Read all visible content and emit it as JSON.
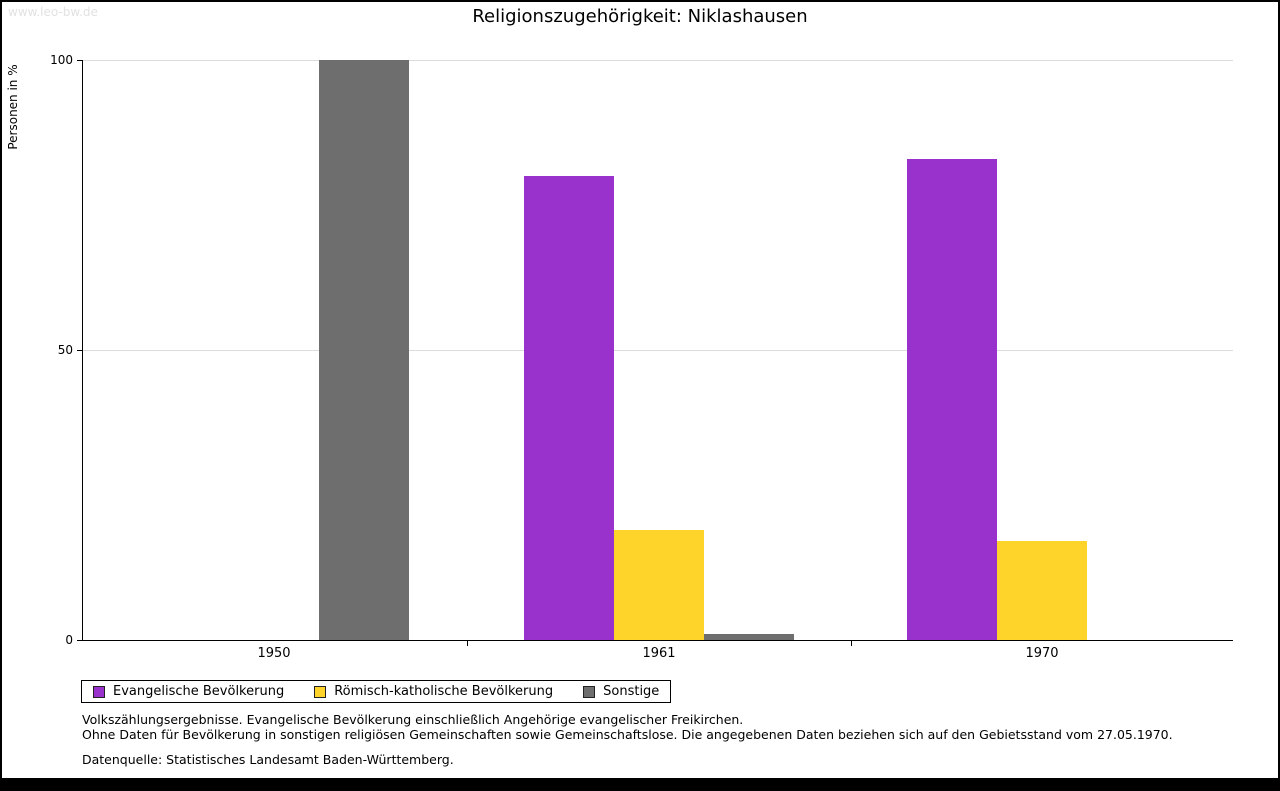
{
  "watermark": "www.leo-bw.de",
  "title": "Religionszugehörigkeit: Niklashausen",
  "chart_data": {
    "type": "bar",
    "title": "Religionszugehörigkeit: Niklashausen",
    "ylabel": "Personen in %",
    "ylim": [
      0,
      100
    ],
    "yticks": [
      0,
      50,
      100
    ],
    "grid": true,
    "legend_position": "bottom",
    "categories": [
      "1950",
      "1961",
      "1970"
    ],
    "series": [
      {
        "name": "Evangelische Bevölkerung",
        "color": "#9932CC",
        "values": [
          0,
          80,
          83
        ]
      },
      {
        "name": "Römisch-katholische Bevölkerung",
        "color": "#FFD42A",
        "values": [
          0,
          19,
          17
        ]
      },
      {
        "name": "Sonstige",
        "color": "#6E6E6E",
        "values": [
          100,
          1,
          0
        ]
      }
    ]
  },
  "footnotes": {
    "line1": "Volkszählungsergebnisse. Evangelische Bevölkerung einschließlich Angehörige evangelischer Freikirchen.",
    "line2": "Ohne Daten für Bevölkerung in sonstigen religiösen Gemeinschaften sowie Gemeinschaftslose. Die angegebenen Daten beziehen sich auf den Gebietsstand vom 27.05.1970.",
    "line3": "Datenquelle: Statistisches Landesamt Baden-Württemberg."
  }
}
